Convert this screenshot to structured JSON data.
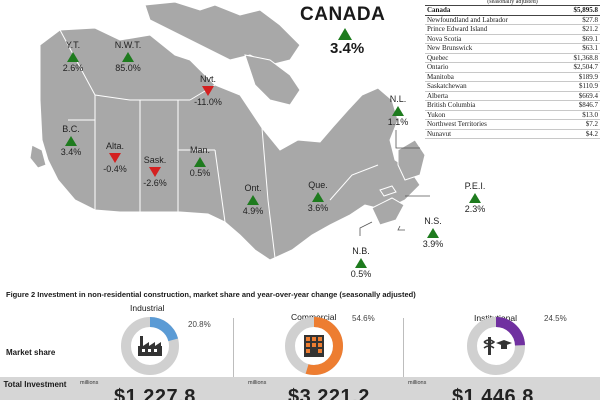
{
  "canada": {
    "title": "CANADA",
    "change": "3.4%"
  },
  "provinces": [
    {
      "abbr": "Y.T.",
      "change": "2.6%",
      "direction": "up"
    },
    {
      "abbr": "N.W.T.",
      "change": "85.0%",
      "direction": "up"
    },
    {
      "abbr": "Nvt.",
      "change": "-11.0%",
      "direction": "down"
    },
    {
      "abbr": "B.C.",
      "change": "3.4%",
      "direction": "up"
    },
    {
      "abbr": "Alta.",
      "change": "-0.4%",
      "direction": "down"
    },
    {
      "abbr": "Sask.",
      "change": "-2.6%",
      "direction": "down"
    },
    {
      "abbr": "Man.",
      "change": "0.5%",
      "direction": "up"
    },
    {
      "abbr": "Ont.",
      "change": "4.9%",
      "direction": "up"
    },
    {
      "abbr": "Que.",
      "change": "3.6%",
      "direction": "up"
    },
    {
      "abbr": "N.L.",
      "change": "1.1%",
      "direction": "up"
    },
    {
      "abbr": "P.E.I.",
      "change": "2.3%",
      "direction": "up"
    },
    {
      "abbr": "N.S.",
      "change": "3.9%",
      "direction": "up"
    },
    {
      "abbr": "N.B.",
      "change": "0.5%",
      "direction": "up"
    }
  ],
  "table": {
    "header": "(seasonally adjusted)",
    "rows": [
      {
        "name": "Canada",
        "value": "$5,895.8"
      },
      {
        "name": "Newfoundland and Labrador",
        "value": "$27.8"
      },
      {
        "name": "Prince Edward Island",
        "value": "$21.2"
      },
      {
        "name": "Nova Scotia",
        "value": "$69.1"
      },
      {
        "name": "New Brunswick",
        "value": "$63.1"
      },
      {
        "name": "Quebec",
        "value": "$1,368.8"
      },
      {
        "name": "Ontario",
        "value": "$2,504.7"
      },
      {
        "name": "Manitoba",
        "value": "$189.9"
      },
      {
        "name": "Saskatchewan",
        "value": "$110.9"
      },
      {
        "name": "Alberta",
        "value": "$669.4"
      },
      {
        "name": "British Columbia",
        "value": "$846.7"
      },
      {
        "name": "Yukon",
        "value": "$13.0"
      },
      {
        "name": "Northwest Territories",
        "value": "$7.2"
      },
      {
        "name": "Nunavut",
        "value": "$4.2"
      }
    ]
  },
  "figure2": {
    "title": "Figure 2 Investment in non-residential construction, market share and year-over-year change (seasonally adjusted)",
    "market_share_label": "Market share",
    "total_investment_label": "Total Investment",
    "millions_label": "millions",
    "segments": [
      {
        "name": "Industrial",
        "share": "20.8%",
        "share_value": 20.8,
        "color": "#5b9bd5",
        "investment": "$1,227.8",
        "icon": "factory-icon"
      },
      {
        "name": "Commercial",
        "share": "54.6%",
        "share_value": 54.6,
        "color": "#ed7d31",
        "investment": "$3,221.2",
        "icon": "office-building-icon"
      },
      {
        "name": "Institutional",
        "share": "24.5%",
        "share_value": 24.5,
        "color": "#7030a0",
        "investment": "$1,446.8",
        "icon": "medical-education-icon"
      }
    ]
  },
  "chart_data": [
    {
      "type": "table",
      "series": [
        {
          "name": "Year-over-year change (%)",
          "values": [
            {
              "region": "Canada",
              "value": 3.4
            },
            {
              "region": "Y.T.",
              "value": 2.6
            },
            {
              "region": "N.W.T.",
              "value": 85.0
            },
            {
              "region": "Nvt.",
              "value": -11.0
            },
            {
              "region": "B.C.",
              "value": 3.4
            },
            {
              "region": "Alta.",
              "value": -0.4
            },
            {
              "region": "Sask.",
              "value": -2.6
            },
            {
              "region": "Man.",
              "value": 0.5
            },
            {
              "region": "Ont.",
              "value": 4.9
            },
            {
              "region": "Que.",
              "value": 3.6
            },
            {
              "region": "N.L.",
              "value": 1.1
            },
            {
              "region": "P.E.I.",
              "value": 2.3
            },
            {
              "region": "N.S.",
              "value": 3.9
            },
            {
              "region": "N.B.",
              "value": 0.5
            }
          ]
        }
      ]
    },
    {
      "type": "pie",
      "title": "Figure 2 Investment in non-residential construction, market share and year-over-year change (seasonally adjusted)",
      "categories": [
        "Industrial",
        "Commercial",
        "Institutional"
      ],
      "values": [
        20.8,
        54.6,
        24.5
      ],
      "investment_millions": [
        1227.8,
        3221.2,
        1446.8
      ]
    }
  ]
}
